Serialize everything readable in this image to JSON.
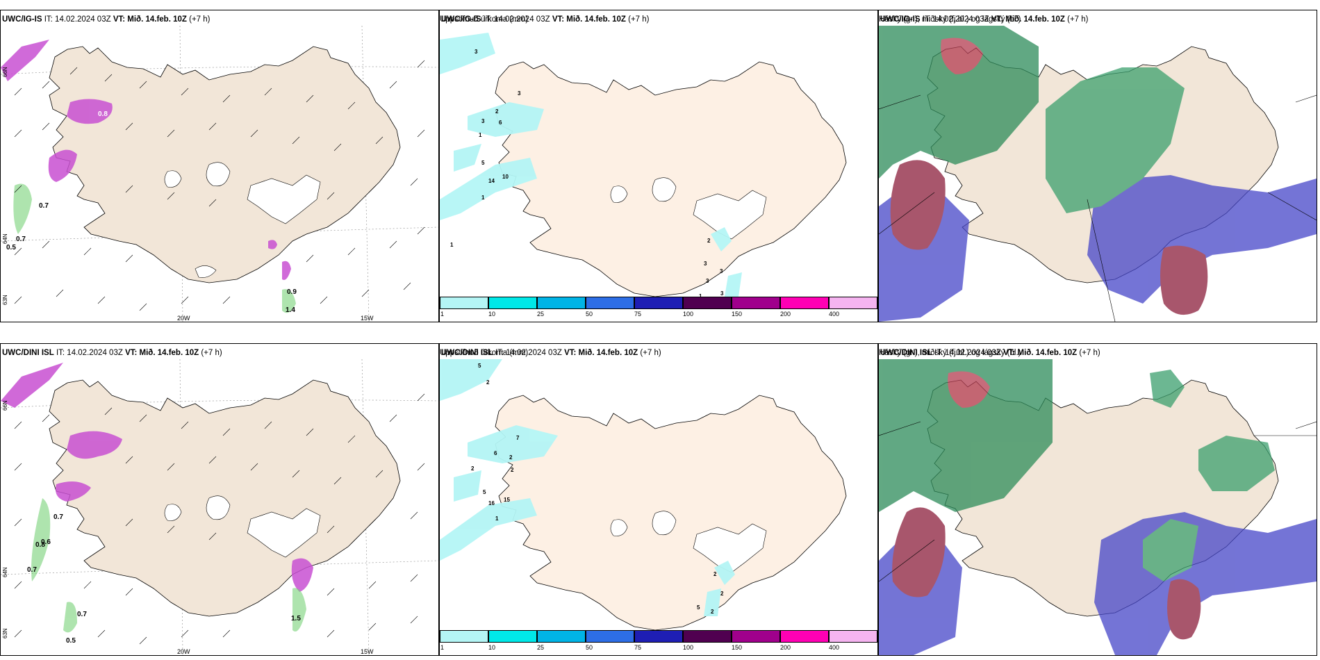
{
  "rows": [
    {
      "model": "UWC/IG-IS",
      "it_label": "IT:",
      "it_value": "14.02.2024 03Z",
      "vt_label": "VT:",
      "vt_value": "Mið. 14.feb. 10Z",
      "lead": "(+7 h)",
      "precip_title": "Uppsöfnuð úrkoma (mm)",
      "cloud_title": "Háský (gr.), miðský (fj.bl.) og lágský (bl.)",
      "wind_labels": [
        "0.8",
        "0.7",
        "0.7",
        "0.5",
        "1.4",
        "0.9"
      ],
      "precip_labels": [
        "3",
        "3",
        "2",
        "3",
        "6",
        "1",
        "5",
        "10",
        "14",
        "1",
        "1",
        "2",
        "3",
        "3",
        "3",
        "1",
        "3"
      ]
    },
    {
      "model": "UWC/DINI ISL",
      "it_label": "IT:",
      "it_value": "14.02.2024 03Z",
      "vt_label": "VT:",
      "vt_value": "Mið. 14.feb. 10Z",
      "lead": "(+7 h)",
      "precip_title": "Uppsöfnuð úrkoma (mm)",
      "cloud_title": "Háský (gr.), miðský (fj.bl.) og lágský (bl.)",
      "wind_labels": [
        "0.7",
        "0.6",
        "0.8",
        "0.7",
        "0.7",
        "0.5",
        "1.5"
      ],
      "precip_labels": [
        "5",
        "2",
        "7",
        "6",
        "2",
        "2",
        "2",
        "5",
        "16",
        "15",
        "1",
        "2",
        "2",
        "2",
        "5"
      ]
    }
  ],
  "axes": {
    "lon_left": "20W",
    "lon_right": "15W",
    "lat_top": "66N",
    "lat_mid": "64N",
    "lat_bottom": "63N"
  },
  "legend": {
    "ticks": [
      "1",
      "10",
      "25",
      "50",
      "75",
      "100",
      "150",
      "200",
      "400"
    ],
    "colors": [
      "#b4f5f5",
      "#00e8e8",
      "#00b4e6",
      "#2d6ee6",
      "#1e1eb4",
      "#500050",
      "#a0008c",
      "#ff00b4",
      "#f5b4f0"
    ]
  },
  "colors": {
    "land": "#f2e6d8",
    "land_precip": "#fdf0e4",
    "wind_mag": "#c850d2",
    "wind_green": "#78d278",
    "cloud_high_green": "#2d8c5a",
    "cloud_mid_red": "#8c1e3c",
    "cloud_low_blue": "#4646c8"
  }
}
